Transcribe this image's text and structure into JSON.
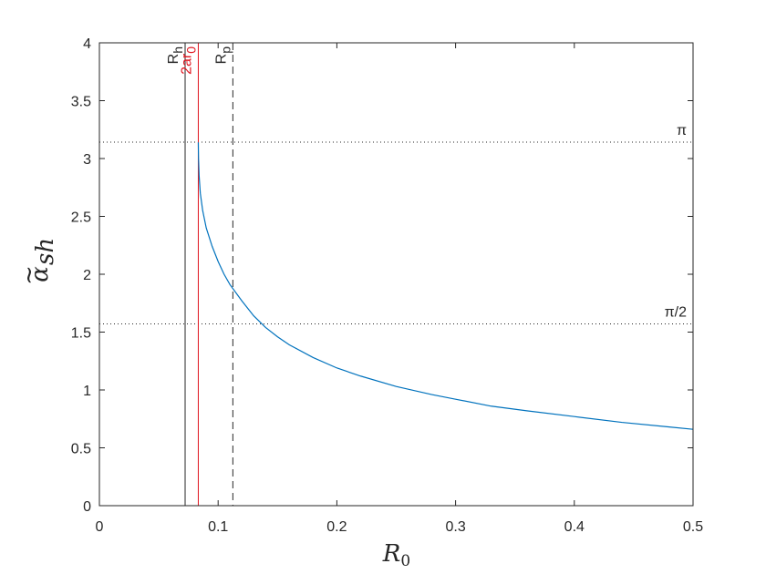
{
  "chart_data": {
    "type": "line",
    "title": "",
    "xlabel": "R",
    "xlabel_sub": "0",
    "ylabel": "α",
    "ylabel_accent": "~",
    "ylabel_sub": "sh",
    "xlim": [
      0,
      0.5
    ],
    "ylim": [
      0,
      4
    ],
    "xticks": [
      0,
      0.1,
      0.2,
      0.3,
      0.4,
      0.5
    ],
    "xtick_labels": [
      "0",
      "0.1",
      "0.2",
      "0.3",
      "0.4",
      "0.5"
    ],
    "yticks": [
      0,
      0.5,
      1,
      1.5,
      2,
      2.5,
      3,
      3.5,
      4
    ],
    "ytick_labels": [
      "0",
      "0.5",
      "1",
      "1.5",
      "2",
      "2.5",
      "3",
      "3.5",
      "4"
    ],
    "grid": false,
    "series": [
      {
        "color": "#0072bd",
        "x": [
          0.0833,
          0.0835,
          0.084,
          0.085,
          0.087,
          0.09,
          0.095,
          0.1,
          0.105,
          0.11,
          0.12,
          0.13,
          0.14,
          0.15,
          0.16,
          0.18,
          0.2,
          0.22,
          0.25,
          0.28,
          0.3,
          0.33,
          0.36,
          0.4,
          0.44,
          0.48,
          0.5
        ],
        "y": [
          3.14,
          3.0,
          2.85,
          2.7,
          2.55,
          2.4,
          2.24,
          2.11,
          2.0,
          1.91,
          1.77,
          1.64,
          1.54,
          1.46,
          1.39,
          1.28,
          1.19,
          1.12,
          1.03,
          0.96,
          0.92,
          0.86,
          0.82,
          0.77,
          0.72,
          0.68,
          0.66
        ]
      }
    ],
    "vertical_lines": [
      {
        "x": 0.0722,
        "style": "solid",
        "color": "#262626",
        "label": "R",
        "label_sub": "h"
      },
      {
        "x": 0.0833,
        "style": "solid",
        "color": "#e0141e",
        "label": "2ar",
        "label_sub": "0"
      },
      {
        "x": 0.1124,
        "style": "dashed",
        "color": "#262626",
        "label": "R",
        "label_sub": "p"
      }
    ],
    "horizontal_lines": [
      {
        "y": 3.1416,
        "style": "dotted",
        "label": "π"
      },
      {
        "y": 1.5708,
        "style": "dotted",
        "label": "π/2"
      }
    ]
  }
}
